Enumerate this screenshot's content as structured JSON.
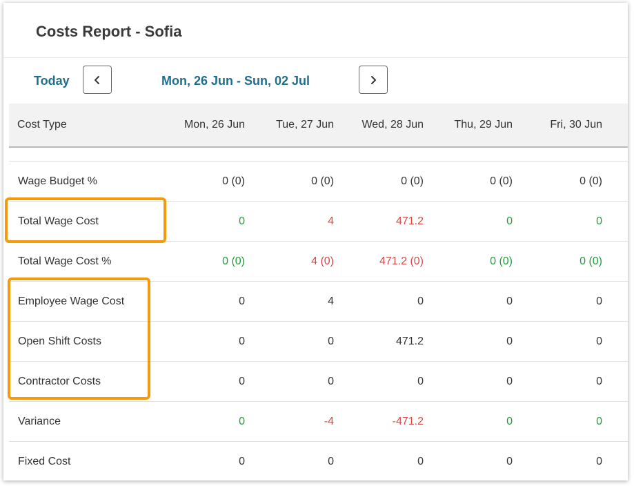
{
  "title": "Costs Report - Sofia",
  "nav": {
    "today_label": "Today",
    "date_range": "Mon, 26 Jun - Sun, 02 Jul"
  },
  "table": {
    "columns": [
      "Cost Type",
      "Mon, 26 Jun",
      "Tue, 27 Jun",
      "Wed, 28 Jun",
      "Thu, 29 Jun",
      "Fri, 30 Jun"
    ],
    "rows": [
      {
        "label": "Wage Budget %",
        "values": [
          "0 (0)",
          "0 (0)",
          "0 (0)",
          "0 (0)",
          "0 (0)"
        ],
        "status": [
          "neutral",
          "neutral",
          "neutral",
          "neutral",
          "neutral"
        ]
      },
      {
        "label": "Total Wage Cost",
        "values": [
          "0",
          "4",
          "471.2",
          "0",
          "0"
        ],
        "status": [
          "positive",
          "negative",
          "negative",
          "positive",
          "positive"
        ]
      },
      {
        "label": "Total Wage Cost %",
        "values": [
          "0 (0)",
          "4 (0)",
          "471.2 (0)",
          "0 (0)",
          "0 (0)"
        ],
        "status": [
          "positive",
          "negative",
          "negative",
          "positive",
          "positive"
        ]
      },
      {
        "label": "Employee Wage Cost",
        "values": [
          "0",
          "4",
          "0",
          "0",
          "0"
        ],
        "status": [
          "neutral",
          "neutral",
          "neutral",
          "neutral",
          "neutral"
        ]
      },
      {
        "label": "Open Shift Costs",
        "values": [
          "0",
          "0",
          "471.2",
          "0",
          "0"
        ],
        "status": [
          "neutral",
          "neutral",
          "neutral",
          "neutral",
          "neutral"
        ]
      },
      {
        "label": "Contractor Costs",
        "values": [
          "0",
          "0",
          "0",
          "0",
          "0"
        ],
        "status": [
          "neutral",
          "neutral",
          "neutral",
          "neutral",
          "neutral"
        ]
      },
      {
        "label": "Variance",
        "values": [
          "0",
          "-4",
          "-471.2",
          "0",
          "0"
        ],
        "status": [
          "positive",
          "negative",
          "negative",
          "positive",
          "positive"
        ]
      },
      {
        "label": "Fixed Cost",
        "values": [
          "0",
          "0",
          "0",
          "0",
          "0"
        ],
        "status": [
          "neutral",
          "neutral",
          "neutral",
          "neutral",
          "neutral"
        ]
      }
    ]
  },
  "colors": {
    "accent": "#1f6e8c",
    "positive": "#1e9e3a",
    "negative": "#d94848",
    "highlight": "#f59a0d"
  },
  "icons": {
    "prev": "chevron-left-icon",
    "next": "chevron-right-icon"
  }
}
